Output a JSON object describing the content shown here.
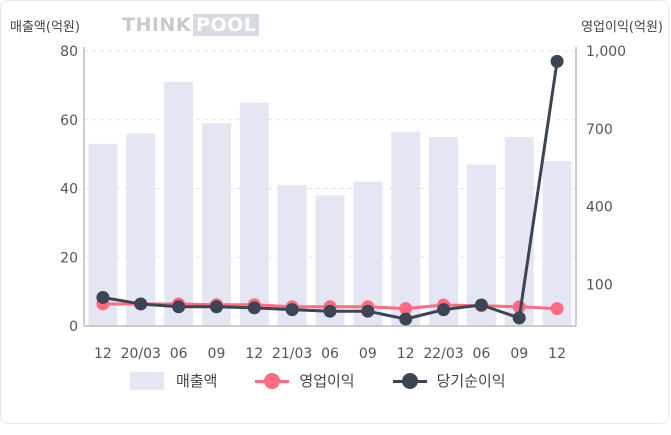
{
  "header": {
    "left_axis_title": "매출액(억원)",
    "right_axis_title": "영업이익(억원)",
    "logo_think": "THINK",
    "logo_pool": "POOL"
  },
  "chart_data": {
    "type": "bar",
    "categories": [
      "12",
      "20/03",
      "06",
      "09",
      "12",
      "21/03",
      "06",
      "09",
      "12",
      "22/03",
      "06",
      "09",
      "12"
    ],
    "y_left": {
      "ticks": [
        "0",
        "20",
        "40",
        "60",
        "80"
      ],
      "ylim": [
        0,
        80
      ]
    },
    "y_right": {
      "ticks": [
        "100",
        "400",
        "700",
        "1,000"
      ],
      "ylim": [
        -60,
        1000
      ]
    },
    "grid": true,
    "legend_position": "bottom",
    "series": [
      {
        "name": "매출액",
        "kind": "bar",
        "axis": "left",
        "color": "#e4e7f3",
        "values": [
          53,
          56,
          71,
          59,
          65,
          41,
          38,
          42,
          56.5,
          55,
          47,
          55,
          48
        ]
      },
      {
        "name": "영업이익",
        "kind": "line",
        "axis": "right",
        "color": "#ff6b7f",
        "values": [
          25,
          25,
          25,
          22,
          22,
          14,
          14,
          14,
          7,
          21,
          18,
          14,
          7
        ]
      },
      {
        "name": "당기순이익",
        "kind": "line",
        "axis": "right",
        "color": "#3d4454",
        "values": [
          50,
          25,
          14,
          14,
          10,
          3,
          -3,
          -3,
          -33,
          3,
          21,
          -29,
          960
        ]
      }
    ]
  }
}
